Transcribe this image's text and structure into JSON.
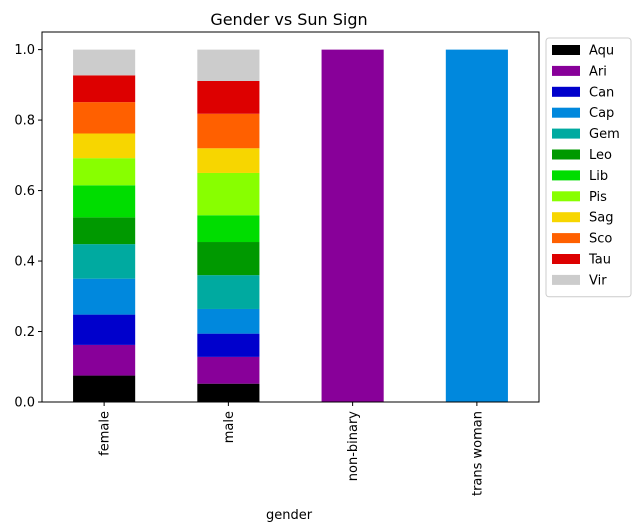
{
  "chart_data": {
    "type": "bar",
    "stacked": true,
    "title": "Gender vs Sun Sign",
    "xlabel": "gender",
    "ylabel": "",
    "ylim": [
      0,
      1.05
    ],
    "yticks": [
      0.0,
      0.2,
      0.4,
      0.6,
      0.8,
      1.0
    ],
    "ytick_labels": [
      "0.0",
      "0.2",
      "0.4",
      "0.6",
      "0.8",
      "1.0"
    ],
    "categories": [
      "female",
      "male",
      "non-binary",
      "trans woman"
    ],
    "legend_position": "outside upper right",
    "grid": false,
    "series": [
      {
        "name": "Aqu",
        "color": "#000000",
        "values": [
          0.075,
          0.052,
          0,
          0
        ]
      },
      {
        "name": "Ari",
        "color": "#880099",
        "values": [
          0.087,
          0.076,
          1.0,
          0
        ]
      },
      {
        "name": "Can",
        "color": "#0000cc",
        "values": [
          0.086,
          0.066,
          0,
          0
        ]
      },
      {
        "name": "Cap",
        "color": "#0088dd",
        "values": [
          0.102,
          0.07,
          0,
          1.0
        ]
      },
      {
        "name": "Gem",
        "color": "#00aaa0",
        "values": [
          0.098,
          0.096,
          0,
          0
        ]
      },
      {
        "name": "Leo",
        "color": "#009900",
        "values": [
          0.076,
          0.094,
          0,
          0
        ]
      },
      {
        "name": "Lib",
        "color": "#00dd00",
        "values": [
          0.091,
          0.076,
          0,
          0
        ]
      },
      {
        "name": "Pis",
        "color": "#88ff00",
        "values": [
          0.077,
          0.12,
          0,
          0
        ]
      },
      {
        "name": "Sag",
        "color": "#f7d600",
        "values": [
          0.07,
          0.07,
          0,
          0
        ]
      },
      {
        "name": "Sco",
        "color": "#ff6000",
        "values": [
          0.089,
          0.098,
          0,
          0
        ]
      },
      {
        "name": "Tau",
        "color": "#dd0000",
        "values": [
          0.076,
          0.093,
          0,
          0
        ]
      },
      {
        "name": "Vir",
        "color": "#cccccc",
        "values": [
          0.073,
          0.089,
          0,
          0
        ]
      }
    ]
  }
}
